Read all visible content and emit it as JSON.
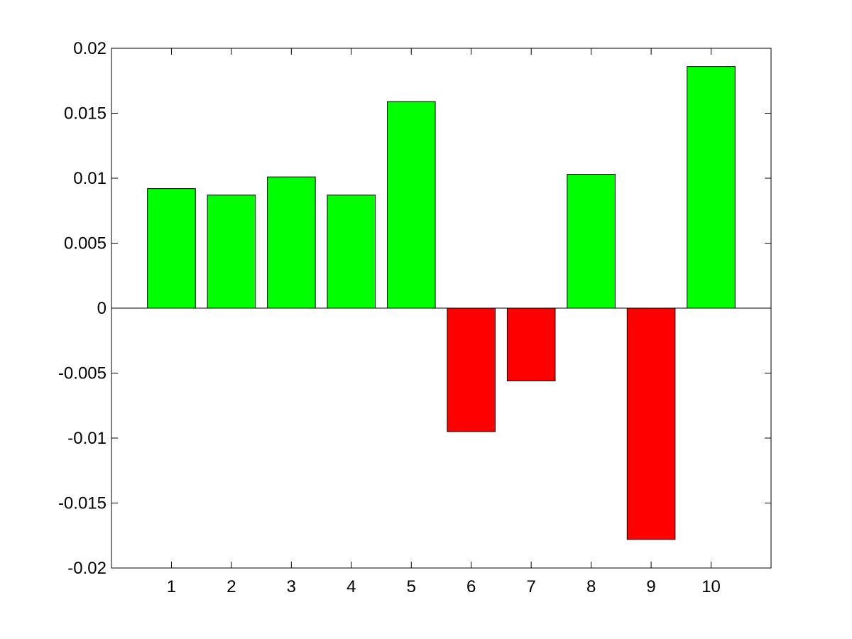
{
  "chart_data": {
    "type": "bar",
    "categories": [
      "1",
      "2",
      "3",
      "4",
      "5",
      "6",
      "7",
      "8",
      "9",
      "10"
    ],
    "values": [
      0.0092,
      0.0087,
      0.0101,
      0.0087,
      0.0159,
      -0.0095,
      -0.0056,
      0.0103,
      -0.0178,
      0.0186
    ],
    "title": "",
    "xlabel": "",
    "ylabel": "",
    "ylim": [
      -0.02,
      0.02
    ],
    "y_ticks": [
      -0.02,
      -0.015,
      -0.01,
      -0.005,
      0,
      0.005,
      0.01,
      0.015,
      0.02
    ],
    "y_tick_labels": [
      "-0.02",
      "-0.015",
      "-0.01",
      "-0.005",
      "0",
      "0.005",
      "0.01",
      "0.015",
      "0.02"
    ],
    "grid": false,
    "colors": {
      "positive": "#00ff00",
      "negative": "#ff0000",
      "edge": "#000000",
      "axis": "#000000"
    }
  }
}
